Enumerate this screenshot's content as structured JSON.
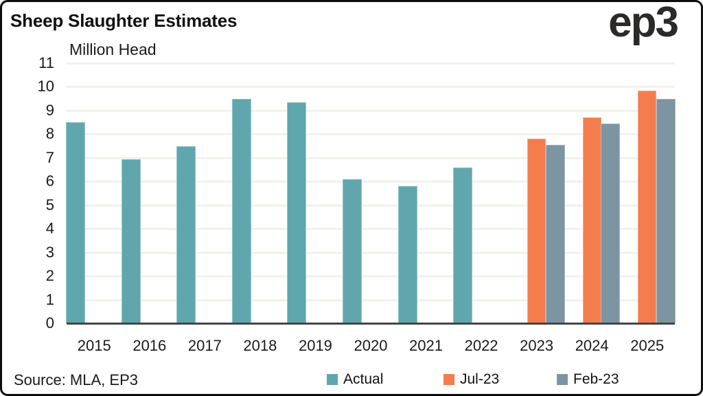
{
  "header": {
    "title": "Sheep Slaughter Estimates",
    "logo": "ep3"
  },
  "footer": {
    "source": "Source: MLA, EP3"
  },
  "chart_data": {
    "type": "bar",
    "title": "Sheep Slaughter Estimates",
    "axis_title": "Million Head",
    "unit": "Million Head",
    "categories": [
      "2015",
      "2016",
      "2017",
      "2018",
      "2019",
      "2020",
      "2021",
      "2022",
      "2023",
      "2024",
      "2025"
    ],
    "series": [
      {
        "name": "Actual",
        "color": "#60A7AD",
        "values": [
          8.5,
          6.95,
          7.5,
          9.5,
          9.35,
          6.1,
          5.8,
          6.6,
          null,
          null,
          null
        ]
      },
      {
        "name": "Jul-23",
        "color": "#F57C4C",
        "values": [
          null,
          null,
          null,
          null,
          null,
          null,
          null,
          null,
          7.8,
          8.7,
          9.85
        ]
      },
      {
        "name": "Feb-23",
        "color": "#7D95A3",
        "values": [
          null,
          null,
          null,
          null,
          null,
          null,
          null,
          null,
          7.55,
          8.45,
          9.5
        ]
      }
    ],
    "ylim": [
      0,
      11
    ],
    "ytick_step": 1,
    "grid": "horizontal",
    "grid_color": "#F2F1EA",
    "axis_color": "#454545",
    "legend_position": "bottom"
  }
}
